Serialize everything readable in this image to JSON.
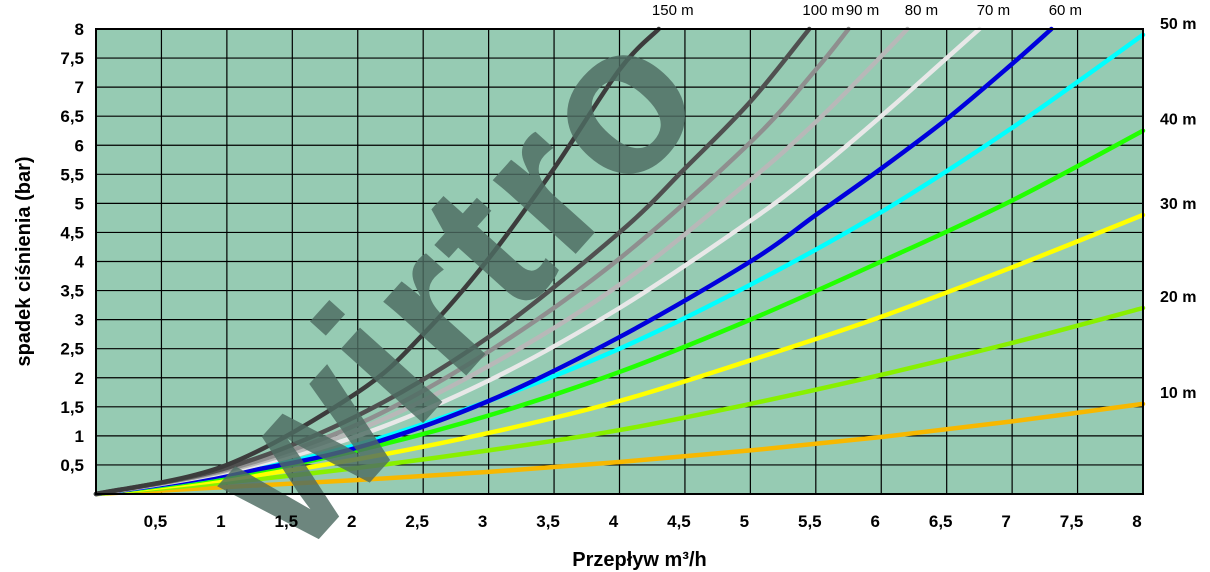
{
  "colors": {
    "plot_background": "#96cbb3",
    "grid": "#000000",
    "watermark": "#4d6b62"
  },
  "chart_data": {
    "type": "line",
    "xlabel": "Przepływ m³/h",
    "ylabel": "spadek ciśnienia (bar)",
    "xlim": [
      0,
      8
    ],
    "ylim": [
      0,
      8
    ],
    "grid": true,
    "x_ticks": [
      "0,5",
      "1",
      "1,5",
      "2",
      "2,5",
      "3",
      "3,5",
      "4",
      "4,5",
      "5",
      "5,5",
      "6",
      "6,5",
      "7",
      "7,5",
      "8"
    ],
    "y_ticks": [
      "0,5",
      "1",
      "1,5",
      "2",
      "2,5",
      "3",
      "3,5",
      "4",
      "4,5",
      "5",
      "5,5",
      "6",
      "6,5",
      "7",
      "7,5",
      "8"
    ],
    "series": [
      {
        "name": "10 m",
        "color": "#f7b800",
        "x": [
          0,
          1,
          2,
          3,
          4,
          5,
          6,
          7,
          8
        ],
        "y": [
          0,
          0.12,
          0.24,
          0.38,
          0.55,
          0.75,
          0.98,
          1.25,
          1.55
        ]
      },
      {
        "name": "20 m",
        "color": "#88f000",
        "x": [
          0,
          1,
          2,
          3,
          4,
          5,
          6,
          7,
          8
        ],
        "y": [
          0,
          0.2,
          0.45,
          0.75,
          1.1,
          1.55,
          2.05,
          2.6,
          3.2
        ]
      },
      {
        "name": "30 m",
        "color": "#ffff00",
        "x": [
          0,
          1,
          2,
          3,
          4,
          5,
          6,
          7,
          8
        ],
        "y": [
          0,
          0.25,
          0.6,
          1.05,
          1.6,
          2.3,
          3.05,
          3.9,
          4.8
        ]
      },
      {
        "name": "40 m",
        "color": "#22ff00",
        "x": [
          0,
          1,
          2,
          3,
          4,
          5,
          6,
          7,
          8
        ],
        "y": [
          0,
          0.3,
          0.75,
          1.35,
          2.1,
          3.0,
          4.0,
          5.05,
          6.25
        ]
      },
      {
        "name": "50 m",
        "color": "#00ffff",
        "x": [
          0,
          1,
          2,
          3,
          4,
          5,
          6,
          7,
          8
        ],
        "y": [
          0,
          0.33,
          0.85,
          1.6,
          2.5,
          3.6,
          4.85,
          6.3,
          7.9
        ]
      },
      {
        "name": "60 m",
        "color": "#0000dd",
        "x": [
          0,
          1,
          2,
          3,
          4,
          5,
          5.5,
          6,
          6.5,
          7,
          7.3
        ],
        "y": [
          0,
          0.33,
          0.8,
          1.6,
          2.7,
          4.0,
          4.8,
          5.6,
          6.45,
          7.4,
          8.0
        ]
      },
      {
        "name": "70 m",
        "color": "#e8e8e8",
        "x": [
          0,
          1,
          2,
          3,
          4,
          5,
          5.5,
          6,
          6.5,
          6.75
        ],
        "y": [
          0,
          0.38,
          1.0,
          1.95,
          3.2,
          4.7,
          5.55,
          6.5,
          7.5,
          8.0
        ]
      },
      {
        "name": "80 m",
        "color": "#b8b8b8",
        "x": [
          0,
          1,
          2,
          3,
          4,
          5,
          5.5,
          5.9,
          6.2
        ],
        "y": [
          0,
          0.4,
          1.1,
          2.2,
          3.6,
          5.4,
          6.4,
          7.3,
          8.0
        ]
      },
      {
        "name": "90 m",
        "color": "#8f8f8f",
        "x": [
          0,
          1,
          2,
          3,
          4,
          5,
          5.5,
          5.75
        ],
        "y": [
          0,
          0.42,
          1.2,
          2.45,
          4.05,
          6.05,
          7.3,
          8.0
        ]
      },
      {
        "name": "100 m",
        "color": "#505050",
        "x": [
          0,
          1,
          2,
          3,
          4,
          4.5,
          5,
          5.45
        ],
        "y": [
          0,
          0.45,
          1.35,
          2.7,
          4.5,
          5.6,
          6.75,
          8.0
        ]
      },
      {
        "name": "150 m",
        "color": "#3c3c3c",
        "x": [
          0,
          1,
          2,
          2.5,
          3,
          3.5,
          4,
          4.3
        ],
        "y": [
          0,
          0.5,
          1.75,
          2.75,
          4.05,
          5.6,
          7.3,
          8.0
        ]
      }
    ]
  }
}
